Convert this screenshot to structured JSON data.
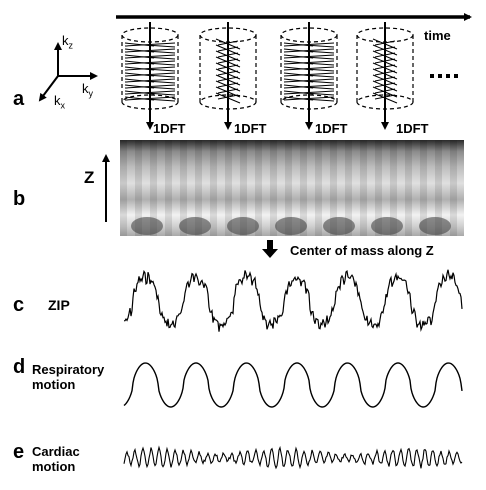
{
  "figure": {
    "time_label": "time",
    "axes": {
      "kz": "k",
      "kz_sub": "z",
      "ky": "k",
      "ky_sub": "y",
      "kx": "k",
      "kx_sub": "x"
    },
    "ellipsis": "....",
    "dft_label": "1DFT",
    "z_label": "Z",
    "center_of_mass_label": "Center of mass along Z",
    "panels": {
      "a": "a",
      "b": "b",
      "c": "c",
      "d": "d",
      "e": "e"
    },
    "zip_label": "ZIP",
    "respiratory_label_line1": "Respiratory",
    "respiratory_label_line2": "motion",
    "cardiac_label_line1": "Cardiac",
    "cardiac_label_line2": "motion"
  }
}
